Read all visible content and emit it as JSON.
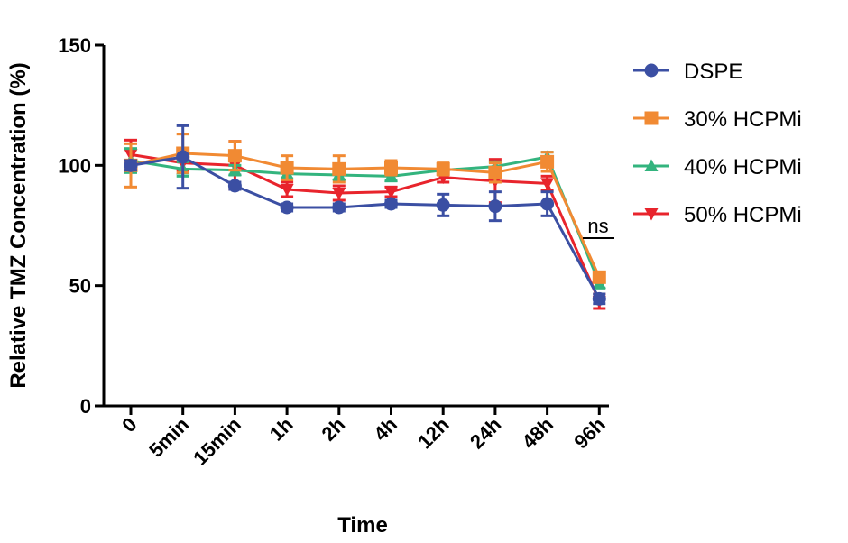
{
  "chart_data": {
    "type": "line",
    "xlabel": "Time",
    "ylabel": "Relative TMZ Concentration (%)",
    "categories": [
      "0",
      "5min",
      "15min",
      "1h",
      "2h",
      "4h",
      "12h",
      "24h",
      "48h",
      "96h"
    ],
    "ylim": [
      0,
      150
    ],
    "yticks": [
      0,
      50,
      100,
      150
    ],
    "grid": false,
    "legend_position": "right",
    "annotation": "ns",
    "series": [
      {
        "name": "DSPE",
        "color": "#3b4fa3",
        "marker": "circle",
        "values": [
          100,
          103.5,
          91.5,
          82.5,
          82.5,
          84,
          83.5,
          83,
          84,
          44.5
        ],
        "errors": [
          2,
          13,
          1.5,
          1.5,
          1.5,
          1.5,
          4.5,
          6,
          5,
          2
        ]
      },
      {
        "name": "30% HCPMi",
        "color": "#f18a33",
        "marker": "square",
        "values": [
          100,
          105,
          104,
          99,
          98.5,
          99,
          98.5,
          97,
          101.5,
          53.5
        ],
        "errors": [
          9,
          8,
          6,
          5,
          5.5,
          3,
          2.5,
          4,
          4,
          2
        ]
      },
      {
        "name": "40% HCPMi",
        "color": "#33b47e",
        "marker": "triangle-up",
        "values": [
          102,
          98.5,
          98,
          96.5,
          96,
          95.5,
          98,
          99.5,
          103.5,
          51
        ],
        "errors": [
          5,
          3,
          2,
          2,
          2,
          2,
          2,
          2,
          2,
          2
        ]
      },
      {
        "name": "50% HCPMi",
        "color": "#e8242c",
        "marker": "triangle-down",
        "values": [
          104.5,
          101,
          100,
          90,
          88.5,
          89,
          95,
          93.5,
          92.5,
          43.5
        ],
        "errors": [
          6,
          3,
          10,
          3,
          3,
          2,
          2,
          9,
          3,
          3
        ]
      }
    ]
  }
}
